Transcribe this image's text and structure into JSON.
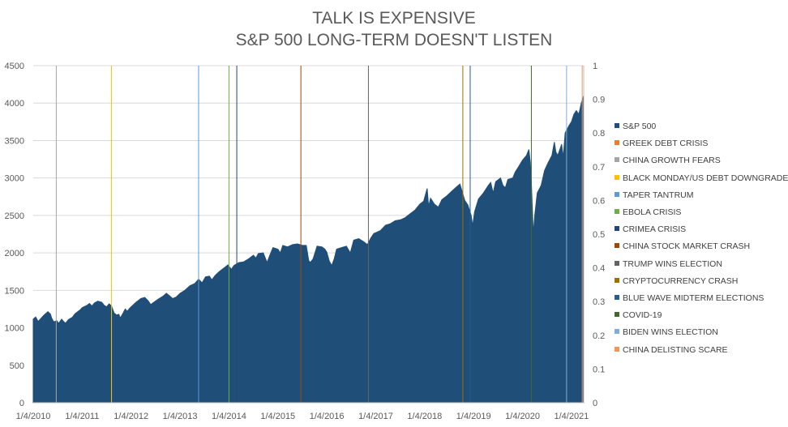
{
  "chart_data": {
    "type": "area",
    "title": "TALK IS EXPENSIVE",
    "subtitle": "S&P 500 LONG-TERM DOESN'T LISTEN",
    "y_ticks": [
      "0",
      "500",
      "1000",
      "1500",
      "2000",
      "2500",
      "3000",
      "3500",
      "4000",
      "4500"
    ],
    "y2_ticks": [
      "0",
      "0.1",
      "0.2",
      "0.3",
      "0.4",
      "0.5",
      "0.6",
      "0.7",
      "0.8",
      "0.9",
      "1"
    ],
    "x_ticks": [
      "1/4/2010",
      "1/4/2011",
      "1/4/2012",
      "1/4/2013",
      "1/4/2014",
      "1/4/2015",
      "1/4/2016",
      "1/4/2017",
      "1/4/2018",
      "1/4/2019",
      "1/4/2020",
      "1/4/2021"
    ],
    "ylim": [
      0,
      4500
    ],
    "y2lim": [
      0,
      1
    ],
    "xlim": [
      2010.0,
      2021.25
    ],
    "grid": true,
    "legend_position": "right",
    "series": [
      {
        "name": "S&P 500",
        "type": "area",
        "color": "#1f4e79",
        "points": [
          [
            2010.0,
            1115
          ],
          [
            2010.05,
            1145
          ],
          [
            2010.1,
            1085
          ],
          [
            2010.15,
            1120
          ],
          [
            2010.22,
            1170
          ],
          [
            2010.3,
            1215
          ],
          [
            2010.35,
            1185
          ],
          [
            2010.38,
            1125
          ],
          [
            2010.42,
            1080
          ],
          [
            2010.48,
            1095
          ],
          [
            2010.52,
            1060
          ],
          [
            2010.58,
            1115
          ],
          [
            2010.62,
            1085
          ],
          [
            2010.66,
            1060
          ],
          [
            2010.72,
            1110
          ],
          [
            2010.8,
            1140
          ],
          [
            2010.85,
            1185
          ],
          [
            2010.9,
            1210
          ],
          [
            2010.96,
            1240
          ],
          [
            2011.0,
            1270
          ],
          [
            2011.1,
            1300
          ],
          [
            2011.15,
            1325
          ],
          [
            2011.2,
            1290
          ],
          [
            2011.25,
            1330
          ],
          [
            2011.32,
            1355
          ],
          [
            2011.4,
            1340
          ],
          [
            2011.45,
            1300
          ],
          [
            2011.5,
            1280
          ],
          [
            2011.55,
            1320
          ],
          [
            2011.6,
            1290
          ],
          [
            2011.65,
            1200
          ],
          [
            2011.7,
            1170
          ],
          [
            2011.75,
            1180
          ],
          [
            2011.78,
            1130
          ],
          [
            2011.83,
            1190
          ],
          [
            2011.88,
            1250
          ],
          [
            2011.92,
            1220
          ],
          [
            2011.97,
            1260
          ],
          [
            2012.0,
            1280
          ],
          [
            2012.1,
            1340
          ],
          [
            2012.2,
            1390
          ],
          [
            2012.28,
            1405
          ],
          [
            2012.35,
            1360
          ],
          [
            2012.4,
            1310
          ],
          [
            2012.45,
            1335
          ],
          [
            2012.55,
            1380
          ],
          [
            2012.65,
            1420
          ],
          [
            2012.72,
            1460
          ],
          [
            2012.78,
            1430
          ],
          [
            2012.85,
            1390
          ],
          [
            2012.92,
            1410
          ],
          [
            2013.0,
            1460
          ],
          [
            2013.1,
            1500
          ],
          [
            2013.2,
            1560
          ],
          [
            2013.3,
            1590
          ],
          [
            2013.38,
            1650
          ],
          [
            2013.45,
            1600
          ],
          [
            2013.52,
            1680
          ],
          [
            2013.6,
            1690
          ],
          [
            2013.65,
            1640
          ],
          [
            2013.72,
            1700
          ],
          [
            2013.8,
            1750
          ],
          [
            2013.9,
            1800
          ],
          [
            2013.98,
            1840
          ],
          [
            2014.05,
            1780
          ],
          [
            2014.1,
            1830
          ],
          [
            2014.2,
            1870
          ],
          [
            2014.3,
            1880
          ],
          [
            2014.4,
            1920
          ],
          [
            2014.5,
            1970
          ],
          [
            2014.55,
            1930
          ],
          [
            2014.6,
            1990
          ],
          [
            2014.7,
            2000
          ],
          [
            2014.78,
            1870
          ],
          [
            2014.83,
            1960
          ],
          [
            2014.9,
            2070
          ],
          [
            2015.0,
            2050
          ],
          [
            2015.05,
            2000
          ],
          [
            2015.1,
            2100
          ],
          [
            2015.2,
            2080
          ],
          [
            2015.3,
            2110
          ],
          [
            2015.4,
            2120
          ],
          [
            2015.5,
            2100
          ],
          [
            2015.58,
            2100
          ],
          [
            2015.63,
            1900
          ],
          [
            2015.66,
            1870
          ],
          [
            2015.72,
            1920
          ],
          [
            2015.8,
            2090
          ],
          [
            2015.9,
            2080
          ],
          [
            2015.96,
            2050
          ],
          [
            2016.0,
            2010
          ],
          [
            2016.05,
            1890
          ],
          [
            2016.1,
            1830
          ],
          [
            2016.15,
            1920
          ],
          [
            2016.2,
            2050
          ],
          [
            2016.3,
            2070
          ],
          [
            2016.4,
            2090
          ],
          [
            2016.48,
            2000
          ],
          [
            2016.55,
            2170
          ],
          [
            2016.65,
            2190
          ],
          [
            2016.75,
            2150
          ],
          [
            2016.83,
            2110
          ],
          [
            2016.9,
            2200
          ],
          [
            2016.96,
            2260
          ],
          [
            2017.0,
            2270
          ],
          [
            2017.1,
            2300
          ],
          [
            2017.2,
            2370
          ],
          [
            2017.3,
            2390
          ],
          [
            2017.4,
            2430
          ],
          [
            2017.5,
            2440
          ],
          [
            2017.6,
            2470
          ],
          [
            2017.7,
            2520
          ],
          [
            2017.8,
            2570
          ],
          [
            2017.9,
            2650
          ],
          [
            2017.98,
            2690
          ],
          [
            2018.05,
            2860
          ],
          [
            2018.08,
            2620
          ],
          [
            2018.12,
            2730
          ],
          [
            2018.2,
            2650
          ],
          [
            2018.28,
            2610
          ],
          [
            2018.35,
            2710
          ],
          [
            2018.45,
            2760
          ],
          [
            2018.55,
            2820
          ],
          [
            2018.65,
            2880
          ],
          [
            2018.72,
            2920
          ],
          [
            2018.78,
            2790
          ],
          [
            2018.82,
            2700
          ],
          [
            2018.88,
            2640
          ],
          [
            2018.95,
            2500
          ],
          [
            2018.98,
            2360
          ],
          [
            2019.02,
            2550
          ],
          [
            2019.1,
            2720
          ],
          [
            2019.2,
            2800
          ],
          [
            2019.3,
            2900
          ],
          [
            2019.35,
            2940
          ],
          [
            2019.4,
            2800
          ],
          [
            2019.45,
            2950
          ],
          [
            2019.55,
            3000
          ],
          [
            2019.6,
            2900
          ],
          [
            2019.65,
            2870
          ],
          [
            2019.7,
            2980
          ],
          [
            2019.8,
            3000
          ],
          [
            2019.85,
            3080
          ],
          [
            2019.92,
            3150
          ],
          [
            2020.0,
            3240
          ],
          [
            2020.08,
            3300
          ],
          [
            2020.13,
            3380
          ],
          [
            2020.16,
            3200
          ],
          [
            2020.18,
            2950
          ],
          [
            2020.2,
            2600
          ],
          [
            2020.22,
            2250
          ],
          [
            2020.25,
            2500
          ],
          [
            2020.3,
            2800
          ],
          [
            2020.38,
            2900
          ],
          [
            2020.45,
            3100
          ],
          [
            2020.52,
            3200
          ],
          [
            2020.6,
            3300
          ],
          [
            2020.65,
            3480
          ],
          [
            2020.68,
            3350
          ],
          [
            2020.72,
            3300
          ],
          [
            2020.8,
            3450
          ],
          [
            2020.83,
            3270
          ],
          [
            2020.87,
            3600
          ],
          [
            2020.95,
            3700
          ],
          [
            2021.0,
            3750
          ],
          [
            2021.05,
            3850
          ],
          [
            2021.1,
            3900
          ],
          [
            2021.15,
            3850
          ],
          [
            2021.2,
            4000
          ],
          [
            2021.25,
            4100
          ]
        ]
      },
      {
        "name": "GREEK DEBT CRISIS",
        "color": "#ed7d31",
        "event_dates": []
      },
      {
        "name": "CHINA GROWTH FEARS",
        "color": "#a5a5a5",
        "event_dates": [
          2010.47
        ]
      },
      {
        "name": "BLACK MONDAY/US DEBT DOWNGRADED",
        "color": "#ffc000",
        "event_dates": [
          2011.6
        ]
      },
      {
        "name": "TAPER TANTRUM",
        "color": "#5b9bd5",
        "event_dates": [
          2013.38
        ]
      },
      {
        "name": "EBOLA CRISIS",
        "color": "#70ad47",
        "event_dates": [
          2014.0
        ]
      },
      {
        "name": "CRIMEA CRISIS",
        "color": "#264478",
        "event_dates": [
          2014.16
        ]
      },
      {
        "name": "CHINA STOCK MARKET CRASH",
        "color": "#9e480e",
        "event_dates": [
          2015.47
        ]
      },
      {
        "name": "TRUMP WINS ELECTION",
        "color": "#636363",
        "event_dates": [
          2016.85
        ]
      },
      {
        "name": "CRYPTOCURRENCY CRASH",
        "color": "#997300",
        "event_dates": [
          2018.78
        ]
      },
      {
        "name": "BLUE WAVE MIDTERM ELECTIONS",
        "color": "#255e91",
        "event_dates": [
          2018.93
        ]
      },
      {
        "name": "COVID-19",
        "color": "#43682b",
        "event_dates": [
          2020.18
        ]
      },
      {
        "name": "BIDEN WINS ELECTION",
        "color": "#7cafdd",
        "event_dates": [
          2020.9
        ]
      },
      {
        "name": "CHINA DELISTING SCARE",
        "color": "#f1975a",
        "event_dates": [
          2021.22
        ]
      }
    ]
  }
}
